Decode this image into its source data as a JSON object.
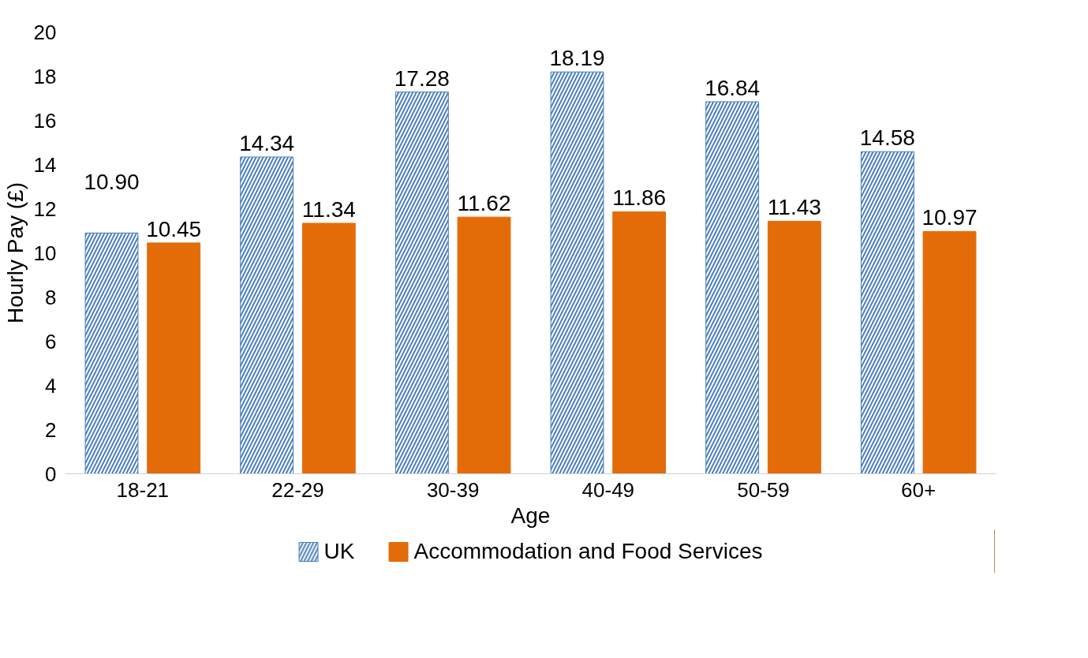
{
  "chart_data": {
    "type": "bar",
    "xlabel": "Age",
    "ylabel": "Hourly Pay (£)",
    "categories": [
      "18-21",
      "22-29",
      "30-39",
      "40-49",
      "50-59",
      "60+"
    ],
    "series": [
      {
        "name": "UK",
        "color": "#4a7ebb",
        "values": [
          10.9,
          14.34,
          17.28,
          18.19,
          16.84,
          14.58
        ],
        "value_labels": [
          "10.90",
          "14.34",
          "17.28",
          "18.19",
          "16.84",
          "14.58"
        ]
      },
      {
        "name": "Accommodation and Food Services",
        "color": "#e36c09",
        "values": [
          10.45,
          11.34,
          11.62,
          11.86,
          11.43,
          10.97
        ],
        "value_labels": [
          "10.45",
          "11.34",
          "11.62",
          "11.86",
          "11.43",
          "10.97"
        ]
      }
    ],
    "ylim": [
      0,
      20
    ],
    "yticks": [
      0,
      2,
      4,
      6,
      8,
      10,
      12,
      14,
      16,
      18,
      20
    ],
    "grid": false,
    "legend": "bottom"
  }
}
